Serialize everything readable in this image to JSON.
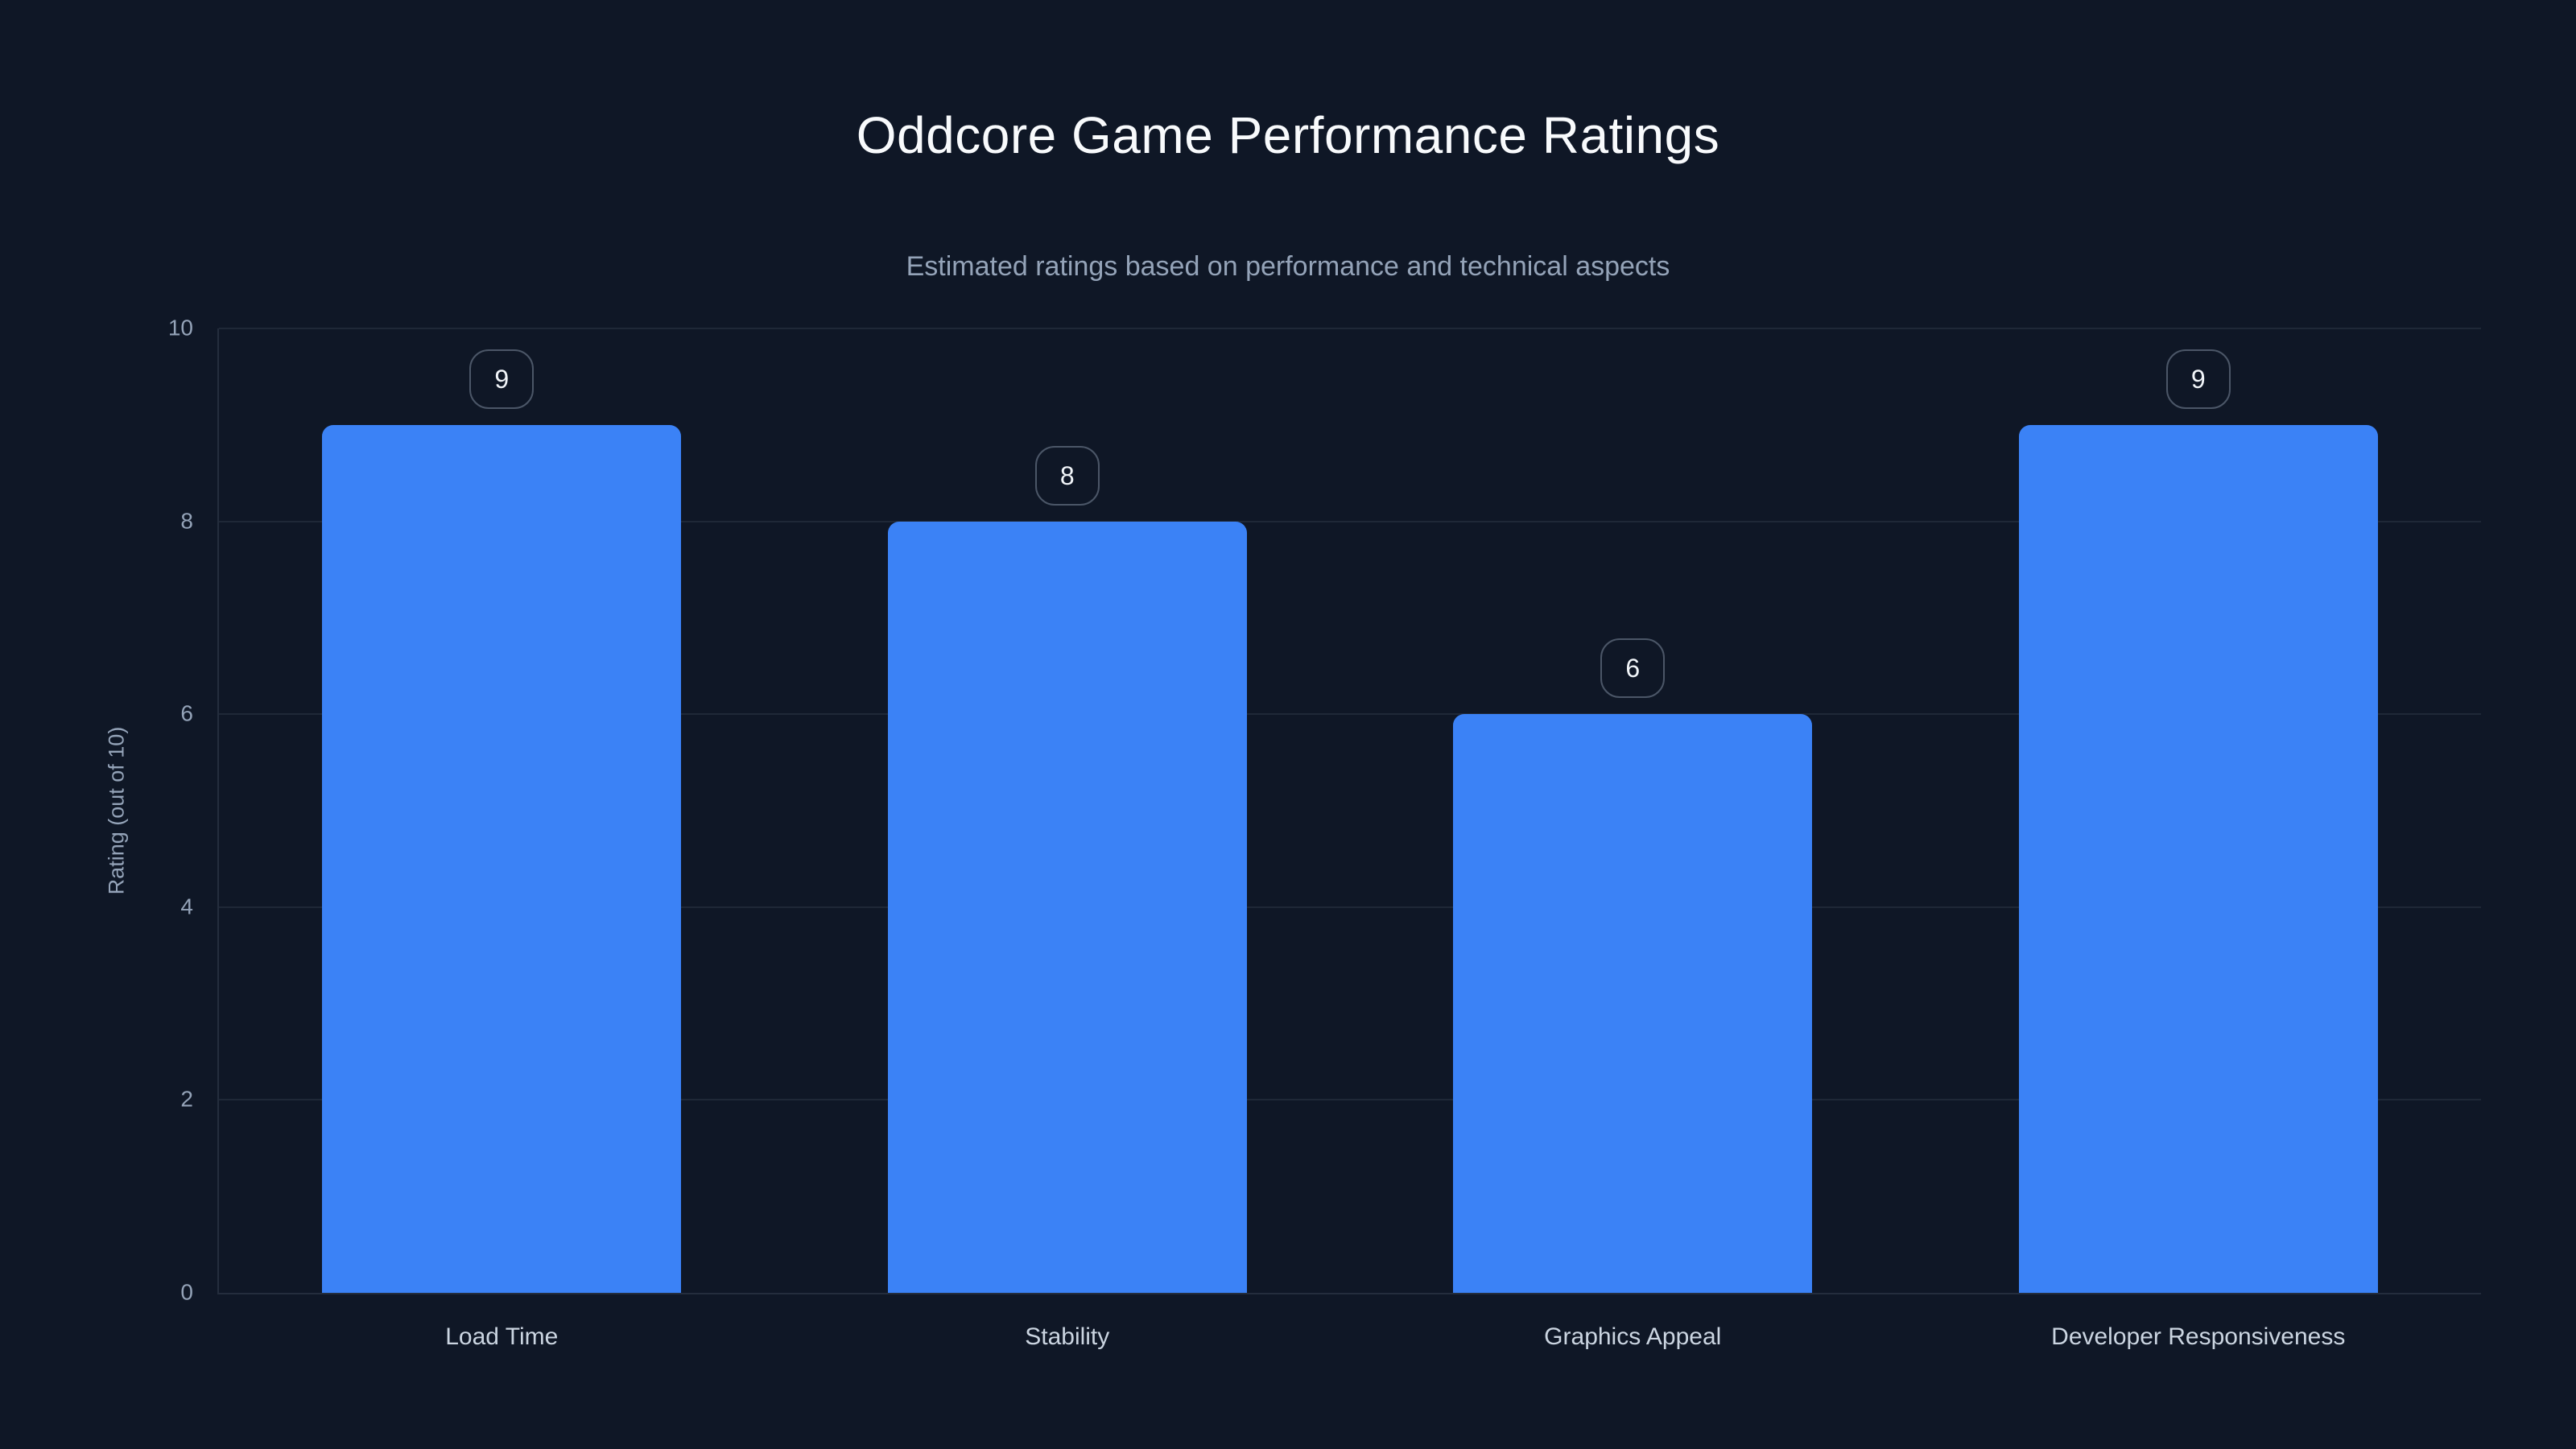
{
  "chart_data": {
    "type": "bar",
    "title": "Oddcore Game Performance Ratings",
    "subtitle": "Estimated ratings based on performance and technical aspects",
    "categories": [
      "Load Time",
      "Stability",
      "Graphics Appeal",
      "Developer Responsiveness"
    ],
    "values": [
      9,
      8,
      6,
      9
    ],
    "value_labels": [
      "9",
      "8",
      "6",
      "9"
    ],
    "xlabel": "",
    "ylabel": "Rating (out of 10)",
    "ylim": [
      0,
      10
    ],
    "yticks": [
      0,
      2,
      4,
      6,
      8,
      10
    ],
    "grid": true,
    "legend": false,
    "colors": {
      "background": "#0f1726",
      "bar": "#3b82f6",
      "title_text": "#f8fafc",
      "subtitle_text": "#94a3b8",
      "axis_tick_text": "#94a3b8",
      "category_text": "#cbd5e1",
      "gridline": "#232d42",
      "badge_border": "#475569",
      "badge_text": "#f1f5f9"
    }
  }
}
